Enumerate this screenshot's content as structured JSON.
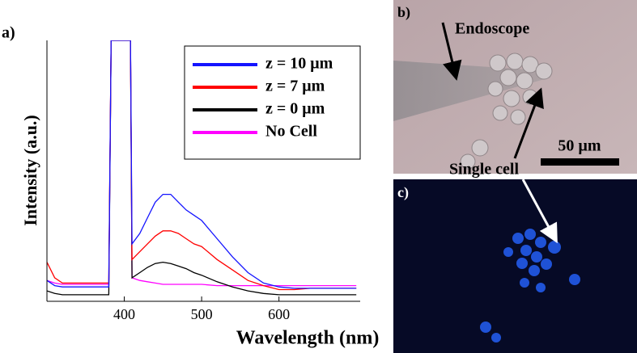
{
  "chart_data": {
    "type": "line",
    "x_label": "Wavelength (nm)",
    "y_label": "Intensity (a.u.)",
    "x": [
      300,
      310,
      320,
      330,
      340,
      350,
      360,
      370,
      380,
      383,
      395,
      408,
      410,
      420,
      430,
      440,
      450,
      460,
      470,
      480,
      490,
      500,
      520,
      540,
      560,
      580,
      600,
      620,
      640,
      660,
      680,
      700
    ],
    "series": [
      {
        "name": "z = 10 μm",
        "color": "#1414ff",
        "values": [
          8,
          6,
          5.5,
          5.5,
          5.5,
          5.5,
          5.5,
          5.5,
          5.5,
          100,
          100,
          100,
          22,
          26,
          32,
          38,
          41,
          41,
          38,
          35,
          33,
          31,
          24,
          17,
          11,
          7,
          5.5,
          5,
          5,
          5,
          5,
          5
        ]
      },
      {
        "name": "z = 7 μm",
        "color": "#ff0000",
        "values": [
          15,
          9,
          7,
          7,
          7,
          7,
          7,
          7,
          7,
          100,
          100,
          100,
          16,
          19,
          22,
          25,
          27,
          27,
          26,
          24,
          22,
          21,
          16,
          12,
          8,
          6,
          4.5,
          4.5,
          5,
          5,
          5,
          5
        ]
      },
      {
        "name": "z = 0 μm",
        "color": "#000000",
        "values": [
          4,
          3,
          2.5,
          2.5,
          2.5,
          2.5,
          2.5,
          2.5,
          2.5,
          100,
          100,
          100,
          9,
          11,
          13,
          14.5,
          15,
          14.5,
          13.5,
          12.5,
          11,
          10,
          7.5,
          5.5,
          4,
          3,
          2.5,
          2.5,
          2.5,
          2.5,
          2.5,
          2.5
        ]
      },
      {
        "name": "No Cell",
        "color": "#ff00ff",
        "values": [
          8,
          7,
          6.5,
          6.5,
          6.5,
          6.5,
          6.5,
          6.5,
          6.5,
          100,
          100,
          100,
          9,
          8,
          7.5,
          7,
          6.5,
          6.5,
          6.5,
          6.5,
          6.5,
          6.5,
          6,
          6,
          6,
          6,
          6,
          6,
          6,
          6,
          6,
          6
        ]
      }
    ],
    "xlim": [
      300,
      705
    ],
    "ylim": [
      0,
      100
    ],
    "xticks": [
      400,
      500,
      600
    ],
    "legend": "upper right"
  },
  "panel_labels": [
    "a)",
    "b)",
    "c)"
  ],
  "image_annotations": {
    "endoscope": "Endoscope",
    "scale_bar": "50 µm",
    "single_cell": "Single cell"
  }
}
